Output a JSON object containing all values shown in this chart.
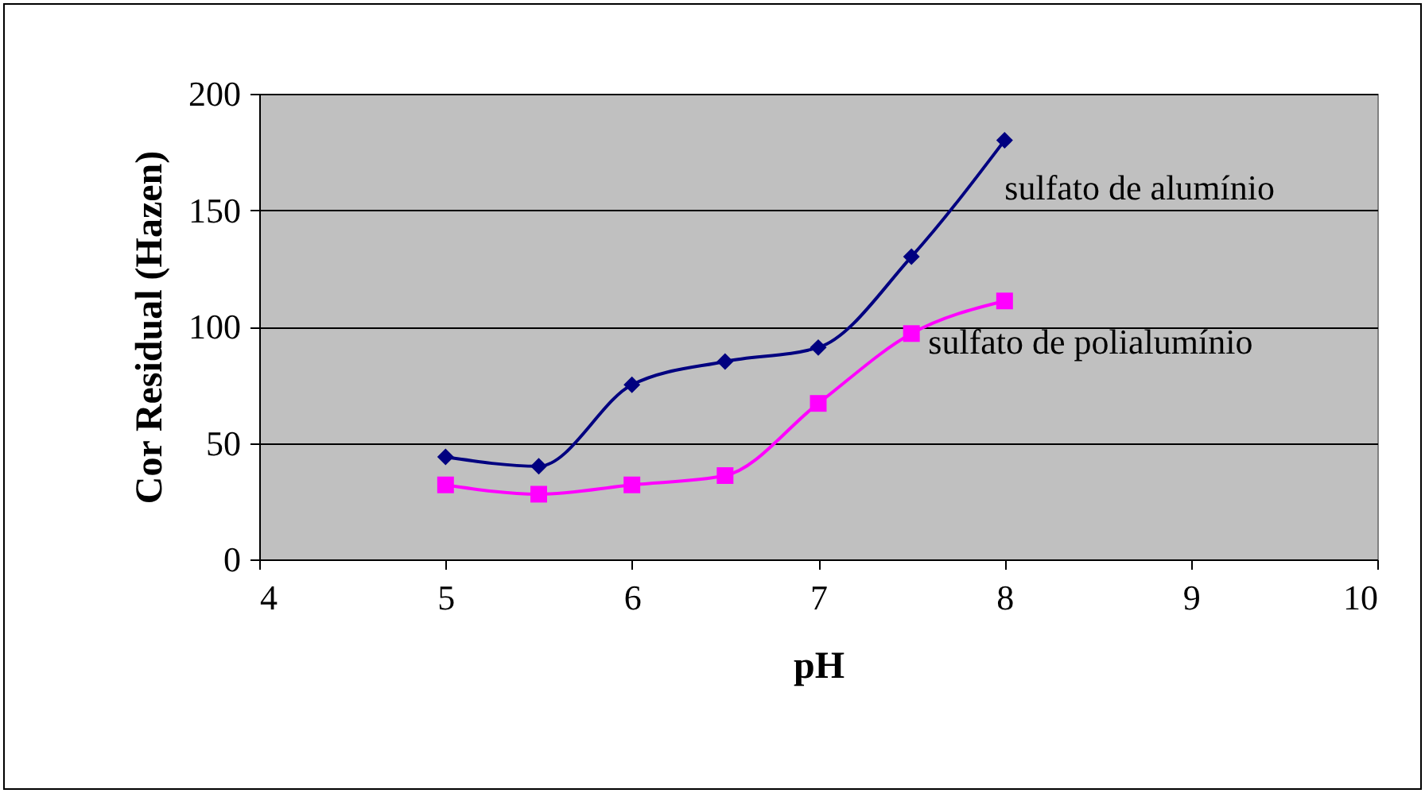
{
  "chart_data": {
    "type": "line",
    "xlabel": "pH",
    "ylabel": "Cor Residual (Hazen)",
    "x": [
      5,
      5.5,
      6,
      6.5,
      7,
      7.5,
      8
    ],
    "series": [
      {
        "name": "sulfato de alumínio",
        "color": "#000080",
        "marker": "diamond",
        "values": [
          44,
          40,
          75,
          85,
          91,
          130,
          180
        ]
      },
      {
        "name": "sulfato de polialumínio",
        "color": "#ff00ff",
        "marker": "square",
        "values": [
          32,
          28,
          32,
          36,
          67,
          97,
          111
        ]
      }
    ],
    "xlim": [
      4,
      10
    ],
    "xticks": [
      4,
      5,
      6,
      7,
      8,
      9,
      10
    ],
    "ylim": [
      0,
      200
    ],
    "yticks": [
      0,
      50,
      100,
      150,
      200
    ],
    "grid": "y"
  }
}
